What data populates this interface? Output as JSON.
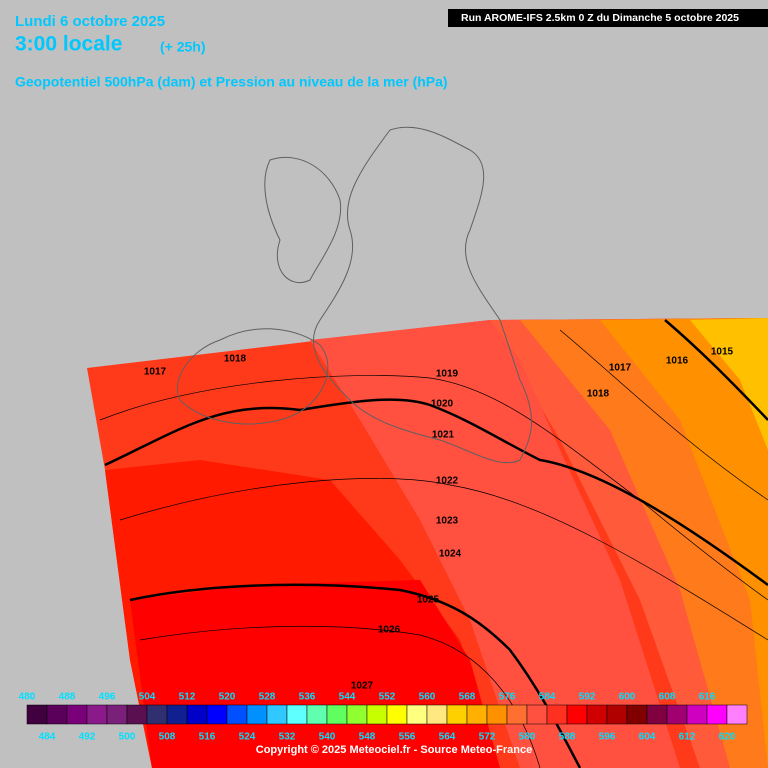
{
  "header": {
    "date": "Lundi 6 octobre 2025",
    "time": "3:00 locale",
    "lead": "(+ 25h)",
    "subtitle": "Geopotentiel 500hPa (dam) et Pression au niveau de la mer (hPa)",
    "run": "Run AROME-IFS 2.5km 0 Z du Dimanche 5 octobre 2025"
  },
  "isobar_labels": [
    1017,
    1018,
    1019,
    1020,
    1021,
    1022,
    1023,
    1024,
    1025,
    1026,
    1027,
    1017,
    1018,
    1016,
    1015
  ],
  "colorbar": {
    "values": [
      480,
      484,
      488,
      492,
      496,
      500,
      504,
      508,
      512,
      516,
      520,
      524,
      528,
      532,
      536,
      540,
      544,
      548,
      552,
      556,
      560,
      564,
      568,
      572,
      576,
      580,
      584,
      588,
      592,
      596,
      600,
      604,
      608,
      612,
      616,
      620
    ],
    "colors": [
      "#400040",
      "#5a005a",
      "#7a007a",
      "#8a1a8a",
      "#7a207a",
      "#5a1050",
      "#303070",
      "#102090",
      "#0000c8",
      "#0000ff",
      "#0050ff",
      "#0090ff",
      "#30c8ff",
      "#60ffff",
      "#60ffb0",
      "#60ff60",
      "#90ff30",
      "#c8ff00",
      "#ffff00",
      "#ffff80",
      "#ffe880",
      "#ffd000",
      "#ffb000",
      "#ff9000",
      "#ff7030",
      "#ff5040",
      "#ff3020",
      "#ff0000",
      "#d00000",
      "#b00000",
      "#800000",
      "#800040",
      "#a00070",
      "#d000c0",
      "#ff00ff",
      "#ff80ff"
    ]
  },
  "footer": {
    "copyright": "Copyright © 2025 Meteociel.fr - Source Meteo-France"
  }
}
